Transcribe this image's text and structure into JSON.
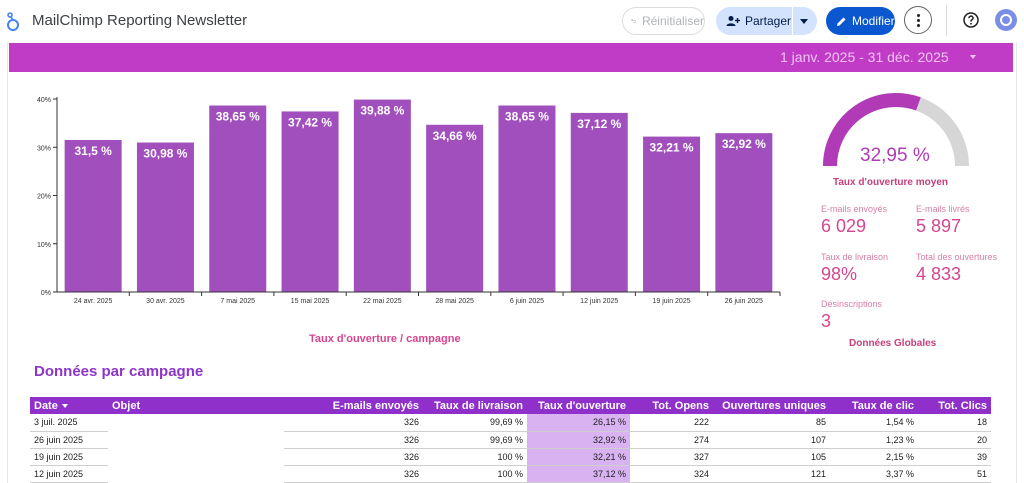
{
  "header": {
    "title": "MailChimp Reporting Newsletter",
    "reset_label": "Réinitialiser",
    "share_label": "Partager",
    "edit_label": "Modifier",
    "icons": [
      "logo-icon",
      "undo-icon",
      "add-person-icon",
      "dropdown-icon",
      "pencil-icon",
      "more-vert-icon",
      "help-icon",
      "avatar"
    ]
  },
  "date_range": "1 janv. 2025 - 31 déc. 2025",
  "colors": {
    "accent": "#c03cc6",
    "bar": "#a14fbd",
    "pink_text": "#d6468f",
    "table_header": "#8e30c9",
    "highlight": "#d9b2f2",
    "edit_button": "#0b57d0"
  },
  "chart_data": {
    "type": "bar",
    "categories": [
      "24 avr. 2025",
      "30 avr. 2025",
      "7 mai 2025",
      "15 mai 2025",
      "22 mai 2025",
      "28 mai 2025",
      "6 juin 2025",
      "12 juin 2025",
      "19 juin 2025",
      "26 juin 2025"
    ],
    "values": [
      31.5,
      30.98,
      38.65,
      37.42,
      39.88,
      34.66,
      38.65,
      37.12,
      32.21,
      32.92
    ],
    "data_labels": [
      "31,5 %",
      "30,98 %",
      "38,65 %",
      "37,42 %",
      "39,88 %",
      "34,66 %",
      "38,65 %",
      "37,12 %",
      "32,21 %",
      "32,92 %"
    ],
    "y_ticks": [
      0,
      10,
      20,
      30,
      40
    ],
    "y_tick_labels": [
      "0%",
      "10%",
      "20%",
      "30%",
      "40%"
    ],
    "ylim": [
      0,
      40
    ],
    "caption": "Taux d'ouverture / campagne",
    "grid": false
  },
  "gauge": {
    "value_label": "32,95 %",
    "fraction": 0.61,
    "label": "Taux d'ouverture moyen"
  },
  "kpis": {
    "sent": {
      "label": "E-mails envoyés",
      "value": "6 029"
    },
    "delivered": {
      "label": "E-mails livrés",
      "value": "5 897"
    },
    "delivery_rate": {
      "label": "Taux de livraison",
      "value": "98%"
    },
    "total_opens": {
      "label": "Total des ouvertures",
      "value": "4 833"
    },
    "unsubscribes": {
      "label": "Désinscriptions",
      "value": "3"
    },
    "caption": "Données Globales"
  },
  "table": {
    "title": "Données par campagne",
    "columns": [
      "Date",
      "Objet",
      "E-mails envoyés",
      "Taux de livraison",
      "Taux d'ouverture",
      "Tot. Opens",
      "Ouvertures uniques",
      "Taux de clic",
      "Tot. Clics"
    ],
    "rows": [
      [
        "3 juil. 2025",
        "",
        "326",
        "99,69 %",
        "26,15 %",
        "222",
        "85",
        "1,54 %",
        "18"
      ],
      [
        "26 juin 2025",
        "",
        "326",
        "99,69 %",
        "32,92 %",
        "274",
        "107",
        "1,23 %",
        "20"
      ],
      [
        "19 juin 2025",
        "",
        "326",
        "100 %",
        "32,21 %",
        "327",
        "105",
        "2,15 %",
        "39"
      ],
      [
        "12 juin 2025",
        "",
        "326",
        "100 %",
        "37,12 %",
        "324",
        "121",
        "3,37 %",
        "51"
      ]
    ]
  }
}
